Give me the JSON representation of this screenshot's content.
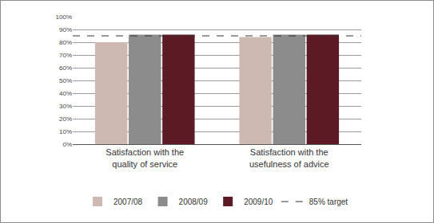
{
  "chart_data": {
    "type": "bar",
    "categories": [
      "Satisfaction with the quality of service",
      "Satisfaction with the usefulness of advice"
    ],
    "series": [
      {
        "name": "2007/08",
        "color": "#cdb9b2",
        "values": [
          80,
          84
        ]
      },
      {
        "name": "2008/09",
        "color": "#8c8c8c",
        "values": [
          86,
          86
        ]
      },
      {
        "name": "2009/10",
        "color": "#5c1b24",
        "values": [
          86,
          86
        ]
      },
      {
        "name": "85% target",
        "type": "line",
        "line_style": "dashed",
        "color": "#333333",
        "values": [
          85,
          85
        ]
      }
    ],
    "ylim": [
      0,
      100
    ],
    "yticks": [
      {
        "value": 0,
        "label": "0%"
      },
      {
        "value": 10,
        "label": "10%"
      },
      {
        "value": 20,
        "label": "20%"
      },
      {
        "value": 30,
        "label": "30%"
      },
      {
        "value": 40,
        "label": "40%"
      },
      {
        "value": 50,
        "label": "50%"
      },
      {
        "value": 60,
        "label": "60%"
      },
      {
        "value": 70,
        "label": "70%"
      },
      {
        "value": 80,
        "label": "80%"
      },
      {
        "value": 90,
        "label": "90%"
      },
      {
        "value": 100,
        "label": "100%"
      }
    ],
    "grid": true,
    "legend": "bottom"
  }
}
